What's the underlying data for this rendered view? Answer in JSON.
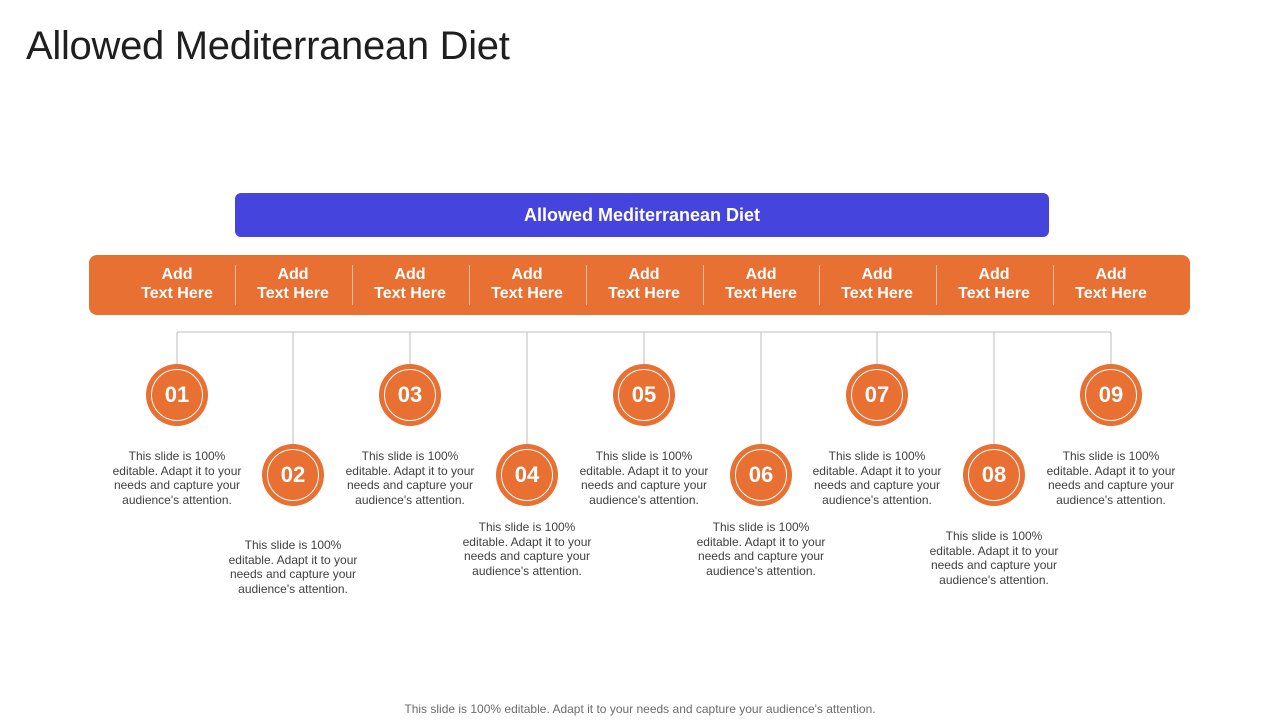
{
  "title": "Allowed Mediterranean Diet",
  "header_bar": {
    "label": "Allowed Mediterranean Diet"
  },
  "colors": {
    "orange": "#e87032",
    "blue": "#4545dd",
    "line": "#bdbdbd"
  },
  "columns": [
    {
      "label": "Add\nText Here",
      "number": "01",
      "desc": "This slide is 100% editable. Adapt it to your needs and capture your audience's attention."
    },
    {
      "label": "Add\nText Here",
      "number": "02",
      "desc": "This slide is 100% editable. Adapt it to your needs and capture your audience's attention."
    },
    {
      "label": "Add\nText Here",
      "number": "03",
      "desc": "This slide is 100% editable. Adapt it to your needs and capture your audience's attention."
    },
    {
      "label": "Add\nText Here",
      "number": "04",
      "desc": "This slide is 100% editable. Adapt it to your needs and capture your audience's attention."
    },
    {
      "label": "Add\nText Here",
      "number": "05",
      "desc": "This slide is 100% editable. Adapt it to your needs and capture your audience's attention."
    },
    {
      "label": "Add\nText Here",
      "number": "06",
      "desc": "This slide is 100% editable. Adapt it to your needs and capture your audience's attention."
    },
    {
      "label": "Add\nText Here",
      "number": "07",
      "desc": "This slide is 100% editable. Adapt it to your needs and capture your audience's attention."
    },
    {
      "label": "Add\nText Here",
      "number": "08",
      "desc": "This slide is 100% editable. Adapt it to your needs and capture your audience's attention."
    },
    {
      "label": "Add\nText Here",
      "number": "09",
      "desc": "This slide is 100% editable. Adapt it to your needs and capture your audience's attention."
    }
  ],
  "footer": "This slide is 100% editable. Adapt it to your needs and capture your audience's attention."
}
